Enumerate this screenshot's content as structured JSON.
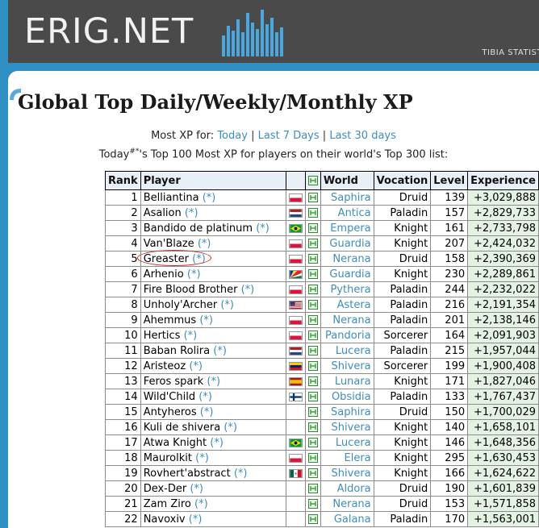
{
  "header": {
    "logo": "ERIG.NET",
    "tagline": "TIBIA STATIST"
  },
  "page": {
    "title": "Global Top Daily/Weekly/Monthly XP",
    "most_xp_label": "Most XP for:",
    "links": [
      "Today",
      "Last 7 Days",
      "Last 30 days"
    ],
    "subline_prefix": "Today",
    "subline_sup": "#*",
    "subline_suffix": "'s Top 100 Most XP for players on their world's Top 300 list:"
  },
  "table": {
    "headers": {
      "rank": "Rank",
      "player": "Player",
      "world": "World",
      "vocation": "Vocation",
      "level": "Level",
      "experience": "Experience"
    },
    "star": "(*)",
    "rows": [
      {
        "rank": "1",
        "player": "Belliantina",
        "flag": "poland",
        "world": "Saphira",
        "vocation": "Druid",
        "level": "139",
        "xp": "+3,029,888"
      },
      {
        "rank": "2",
        "player": "Asalion",
        "flag": "netherlands",
        "world": "Antica",
        "vocation": "Paladin",
        "level": "157",
        "xp": "+2,829,733"
      },
      {
        "rank": "3",
        "player": "Bandido de platinum",
        "flag": "brazil",
        "world": "Empera",
        "vocation": "Knight",
        "level": "161",
        "xp": "+2,733,798"
      },
      {
        "rank": "4",
        "player": "Van'Blaze",
        "flag": "poland",
        "world": "Guardia",
        "vocation": "Knight",
        "level": "207",
        "xp": "+2,424,032"
      },
      {
        "rank": "5",
        "player": "Greaster",
        "flag": "poland",
        "world": "Nerana",
        "vocation": "Druid",
        "level": "158",
        "xp": "+2,390,369"
      },
      {
        "rank": "6",
        "player": "Arhenio",
        "flag": "seychelles",
        "world": "Guardia",
        "vocation": "Knight",
        "level": "230",
        "xp": "+2,289,861"
      },
      {
        "rank": "7",
        "player": "Fire Blood Brother",
        "flag": "poland",
        "world": "Pythera",
        "vocation": "Paladin",
        "level": "244",
        "xp": "+2,232,022"
      },
      {
        "rank": "8",
        "player": "Unholy'Archer",
        "flag": "usa",
        "world": "Astera",
        "vocation": "Paladin",
        "level": "216",
        "xp": "+2,191,354"
      },
      {
        "rank": "9",
        "player": "Ahemmus",
        "flag": "poland",
        "world": "Nerana",
        "vocation": "Paladin",
        "level": "201",
        "xp": "+2,138,146"
      },
      {
        "rank": "10",
        "player": "Hertics",
        "flag": "poland",
        "world": "Pandoria",
        "vocation": "Sorcerer",
        "level": "164",
        "xp": "+2,091,903"
      },
      {
        "rank": "11",
        "player": "Baban Rolira",
        "flag": "netherlands",
        "world": "Lucera",
        "vocation": "Paladin",
        "level": "215",
        "xp": "+1,957,044"
      },
      {
        "rank": "12",
        "player": "Aristeoz",
        "flag": "venezuela",
        "world": "Shivera",
        "vocation": "Sorcerer",
        "level": "199",
        "xp": "+1,900,408"
      },
      {
        "rank": "13",
        "player": "Feros spark",
        "flag": "spain",
        "world": "Lunara",
        "vocation": "Knight",
        "level": "171",
        "xp": "+1,827,046"
      },
      {
        "rank": "14",
        "player": "Wild'Child",
        "flag": "finland",
        "world": "Obsidia",
        "vocation": "Paladin",
        "level": "133",
        "xp": "+1,767,437"
      },
      {
        "rank": "15",
        "player": "Antyheros",
        "flag": "",
        "world": "Saphira",
        "vocation": "Druid",
        "level": "150",
        "xp": "+1,700,029"
      },
      {
        "rank": "16",
        "player": "Kuli de shivera",
        "flag": "",
        "world": "Shivera",
        "vocation": "Knight",
        "level": "140",
        "xp": "+1,658,101"
      },
      {
        "rank": "17",
        "player": "Atwa Knight",
        "flag": "brazil",
        "world": "Lucera",
        "vocation": "Knight",
        "level": "146",
        "xp": "+1,648,356"
      },
      {
        "rank": "18",
        "player": "Maurolkit",
        "flag": "poland",
        "world": "Elera",
        "vocation": "Knight",
        "level": "295",
        "xp": "+1,630,453"
      },
      {
        "rank": "19",
        "player": "Rovhert'abstract",
        "flag": "mexico",
        "world": "Shivera",
        "vocation": "Knight",
        "level": "166",
        "xp": "+1,624,622"
      },
      {
        "rank": "20",
        "player": "Dex-Der",
        "flag": "",
        "world": "Aldora",
        "vocation": "Druid",
        "level": "190",
        "xp": "+1,601,839"
      },
      {
        "rank": "21",
        "player": "Zam Ziro",
        "flag": "",
        "world": "Nerana",
        "vocation": "Druid",
        "level": "153",
        "xp": "+1,571,858"
      },
      {
        "rank": "22",
        "player": "Navoxiv",
        "flag": "",
        "world": "Galana",
        "vocation": "Paladin",
        "level": "170",
        "xp": "+1,563,001"
      }
    ]
  },
  "colors": {
    "link": "#3d8dbd",
    "header_bg": "#4a4a4a",
    "page_bg": "#2f8fc3",
    "xp_bg": "#e3f2e3",
    "circle": "#c8281f"
  }
}
